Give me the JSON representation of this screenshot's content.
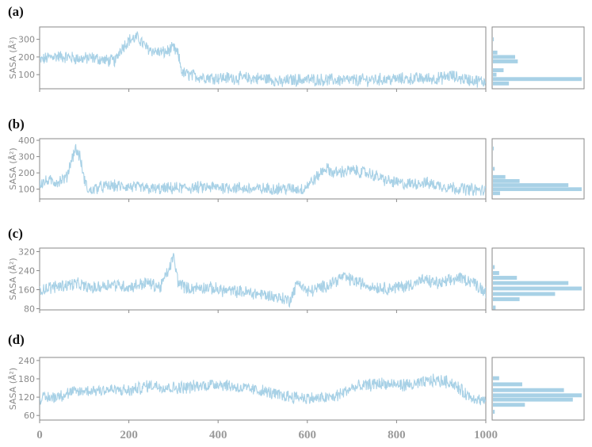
{
  "colors": {
    "series": "#a8d1e6",
    "axis": "#8a8a8a",
    "bar": "#a8d1e6"
  },
  "chart_data": [
    {
      "label": "(a)",
      "type": "line",
      "ylabel": "SASA (Å²)",
      "xlim": [
        0,
        1000
      ],
      "ylim": [
        20,
        370
      ],
      "yticks": [
        100,
        200,
        300
      ],
      "xticks": [],
      "x": [
        0,
        30,
        60,
        90,
        120,
        150,
        170,
        180,
        200,
        220,
        240,
        260,
        280,
        300,
        310,
        320,
        340,
        360,
        400,
        450,
        500,
        520,
        540,
        560,
        600,
        650,
        700,
        750,
        800,
        850,
        880,
        900,
        920,
        940,
        960,
        980,
        1000
      ],
      "y": [
        180,
        205,
        200,
        190,
        195,
        180,
        178,
        240,
        295,
        310,
        250,
        230,
        225,
        250,
        215,
        110,
        95,
        88,
        82,
        80,
        78,
        75,
        55,
        70,
        72,
        70,
        68,
        72,
        75,
        77,
        78,
        80,
        95,
        80,
        72,
        65,
        60
      ],
      "hist": {
        "ylim": [
          20,
          370
        ],
        "bins": [
          {
            "y": 50,
            "count": 18
          },
          {
            "y": 75,
            "count": 100
          },
          {
            "y": 100,
            "count": 4
          },
          {
            "y": 125,
            "count": 12
          },
          {
            "y": 175,
            "count": 28
          },
          {
            "y": 200,
            "count": 25
          },
          {
            "y": 225,
            "count": 5
          },
          {
            "y": 300,
            "count": 1
          }
        ]
      }
    },
    {
      "label": "(b)",
      "type": "line",
      "ylabel": "SASA (Å²)",
      "xlim": [
        0,
        1000
      ],
      "ylim": [
        40,
        410
      ],
      "yticks": [
        100,
        200,
        300,
        400
      ],
      "xticks": [],
      "x": [
        0,
        20,
        40,
        60,
        70,
        80,
        90,
        100,
        110,
        130,
        160,
        200,
        260,
        300,
        360,
        420,
        480,
        540,
        590,
        620,
        640,
        660,
        700,
        740,
        780,
        820,
        860,
        900,
        940,
        980,
        1000
      ],
      "y": [
        135,
        150,
        145,
        170,
        270,
        350,
        300,
        160,
        85,
        110,
        120,
        115,
        100,
        105,
        110,
        112,
        100,
        105,
        100,
        170,
        230,
        200,
        215,
        195,
        150,
        130,
        140,
        120,
        105,
        95,
        90
      ],
      "hist": {
        "ylim": [
          40,
          410
        ],
        "bins": [
          {
            "y": 75,
            "count": 8
          },
          {
            "y": 100,
            "count": 100
          },
          {
            "y": 125,
            "count": 85
          },
          {
            "y": 150,
            "count": 30
          },
          {
            "y": 175,
            "count": 14
          },
          {
            "y": 225,
            "count": 2
          },
          {
            "y": 350,
            "count": 1
          }
        ]
      }
    },
    {
      "label": "(c)",
      "type": "line",
      "ylabel": "SASA (Å²)",
      "xlim": [
        0,
        1000
      ],
      "ylim": [
        75,
        335
      ],
      "yticks": [
        80,
        160,
        240,
        320
      ],
      "xticks": [],
      "x": [
        0,
        40,
        80,
        120,
        160,
        200,
        240,
        270,
        290,
        300,
        310,
        330,
        370,
        420,
        460,
        500,
        540,
        560,
        580,
        600,
        640,
        680,
        700,
        740,
        780,
        820,
        860,
        900,
        940,
        970,
        1000
      ],
      "y": [
        160,
        175,
        185,
        165,
        185,
        170,
        190,
        170,
        245,
        300,
        195,
        165,
        170,
        155,
        150,
        140,
        125,
        115,
        195,
        150,
        175,
        215,
        200,
        175,
        165,
        175,
        200,
        185,
        210,
        195,
        150
      ],
      "hist": {
        "ylim": [
          75,
          335
        ],
        "bins": [
          {
            "y": 85,
            "count": 3
          },
          {
            "y": 120,
            "count": 30
          },
          {
            "y": 142,
            "count": 70
          },
          {
            "y": 165,
            "count": 100
          },
          {
            "y": 188,
            "count": 85
          },
          {
            "y": 210,
            "count": 27
          },
          {
            "y": 230,
            "count": 7
          },
          {
            "y": 255,
            "count": 2
          }
        ]
      }
    },
    {
      "label": "(d)",
      "type": "line",
      "ylabel": "SASA (Å²)",
      "xlim": [
        0,
        1000
      ],
      "ylim": [
        45,
        250
      ],
      "yticks": [
        60,
        120,
        180,
        240
      ],
      "xticks": [
        0,
        200,
        400,
        600,
        800,
        1000
      ],
      "x": [
        0,
        30,
        70,
        100,
        150,
        200,
        250,
        300,
        350,
        400,
        450,
        500,
        540,
        580,
        620,
        660,
        700,
        760,
        800,
        840,
        880,
        920,
        960,
        1000
      ],
      "y": [
        115,
        120,
        135,
        140,
        145,
        140,
        160,
        150,
        155,
        165,
        150,
        140,
        125,
        120,
        115,
        120,
        150,
        165,
        160,
        160,
        175,
        170,
        125,
        105
      ],
      "hist": {
        "ylim": [
          45,
          250
        ],
        "bins": [
          {
            "y": 72,
            "count": 2
          },
          {
            "y": 95,
            "count": 36
          },
          {
            "y": 112,
            "count": 90
          },
          {
            "y": 126,
            "count": 100
          },
          {
            "y": 143,
            "count": 80
          },
          {
            "y": 162,
            "count": 33
          },
          {
            "y": 182,
            "count": 7
          }
        ]
      }
    }
  ]
}
